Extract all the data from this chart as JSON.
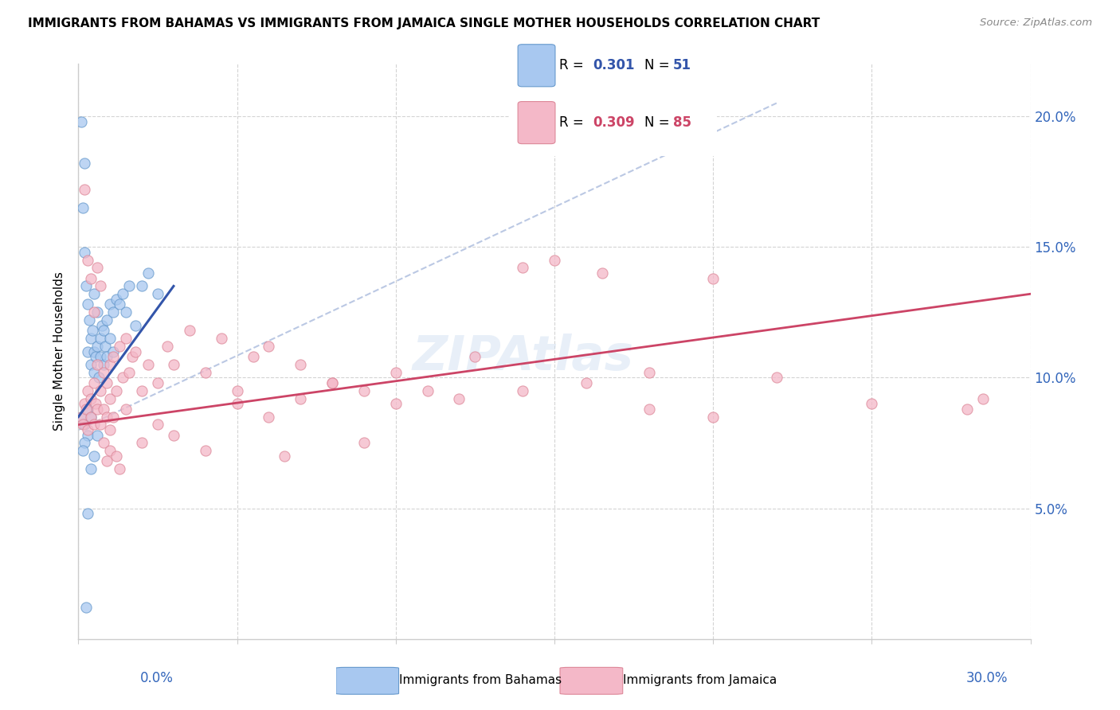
{
  "title": "IMMIGRANTS FROM BAHAMAS VS IMMIGRANTS FROM JAMAICA SINGLE MOTHER HOUSEHOLDS CORRELATION CHART",
  "source": "Source: ZipAtlas.com",
  "ylabel": "Single Mother Households",
  "xlim": [
    0,
    30
  ],
  "ylim": [
    0,
    22
  ],
  "yticks": [
    5,
    10,
    15,
    20
  ],
  "ytick_labels": [
    "5.0%",
    "10.0%",
    "15.0%",
    "20.0%"
  ],
  "color_bahamas_fill": "#a8c8f0",
  "color_bahamas_edge": "#6699cc",
  "color_jamaica_fill": "#f4b8c8",
  "color_jamaica_edge": "#dd8899",
  "color_bahamas_line": "#3355aa",
  "color_jamaica_line": "#cc4466",
  "color_diagonal": "#aabbdd",
  "bahamas_x": [
    0.1,
    0.15,
    0.2,
    0.2,
    0.25,
    0.3,
    0.3,
    0.35,
    0.4,
    0.4,
    0.45,
    0.5,
    0.5,
    0.5,
    0.55,
    0.6,
    0.6,
    0.65,
    0.7,
    0.7,
    0.75,
    0.8,
    0.8,
    0.85,
    0.9,
    0.9,
    1.0,
    1.0,
    1.1,
    1.1,
    1.2,
    1.3,
    1.4,
    1.5,
    1.6,
    1.8,
    2.0,
    2.2,
    2.5,
    0.1,
    0.2,
    0.3,
    0.4,
    0.3,
    0.2,
    0.15,
    0.5,
    0.6,
    0.4,
    0.3,
    0.25
  ],
  "bahamas_y": [
    19.8,
    16.5,
    18.2,
    14.8,
    13.5,
    12.8,
    11.0,
    12.2,
    11.5,
    10.5,
    11.8,
    11.0,
    10.2,
    13.2,
    10.8,
    12.5,
    11.2,
    10.0,
    11.5,
    10.8,
    12.0,
    11.8,
    10.5,
    11.2,
    10.8,
    12.2,
    12.8,
    11.5,
    12.5,
    11.0,
    13.0,
    12.8,
    13.2,
    12.5,
    13.5,
    12.0,
    13.5,
    14.0,
    13.2,
    8.5,
    8.2,
    8.8,
    8.5,
    7.8,
    7.5,
    7.2,
    7.0,
    7.8,
    6.5,
    4.8,
    1.2
  ],
  "jamaica_x": [
    0.1,
    0.15,
    0.2,
    0.25,
    0.3,
    0.3,
    0.4,
    0.4,
    0.5,
    0.5,
    0.55,
    0.6,
    0.6,
    0.7,
    0.7,
    0.8,
    0.8,
    0.9,
    0.9,
    1.0,
    1.0,
    1.0,
    1.1,
    1.2,
    1.3,
    1.4,
    1.5,
    1.6,
    1.7,
    1.8,
    2.0,
    2.2,
    2.5,
    2.8,
    3.0,
    3.5,
    4.0,
    4.5,
    5.0,
    5.5,
    6.0,
    6.5,
    7.0,
    8.0,
    9.0,
    10.0,
    11.0,
    12.5,
    14.0,
    15.0,
    16.5,
    18.0,
    20.0,
    22.0,
    0.2,
    0.3,
    0.4,
    0.5,
    0.6,
    0.7,
    0.8,
    0.9,
    1.0,
    1.1,
    1.2,
    1.3,
    1.5,
    2.0,
    2.5,
    3.0,
    4.0,
    5.0,
    6.0,
    7.0,
    8.0,
    9.0,
    10.0,
    12.0,
    14.0,
    16.0,
    18.0,
    20.0,
    25.0,
    28.0,
    28.5
  ],
  "jamaica_y": [
    8.5,
    8.2,
    9.0,
    8.8,
    9.5,
    8.0,
    9.2,
    8.5,
    9.8,
    8.2,
    9.0,
    10.5,
    8.8,
    9.5,
    8.2,
    10.2,
    8.8,
    9.8,
    8.5,
    10.5,
    9.2,
    8.0,
    10.8,
    9.5,
    11.2,
    10.0,
    11.5,
    10.2,
    10.8,
    11.0,
    9.5,
    10.5,
    9.8,
    11.2,
    10.5,
    11.8,
    10.2,
    11.5,
    9.5,
    10.8,
    11.2,
    7.0,
    10.5,
    9.8,
    7.5,
    10.2,
    9.5,
    10.8,
    14.2,
    14.5,
    14.0,
    10.2,
    13.8,
    10.0,
    17.2,
    14.5,
    13.8,
    12.5,
    14.2,
    13.5,
    7.5,
    6.8,
    7.2,
    8.5,
    7.0,
    6.5,
    8.8,
    7.5,
    8.2,
    7.8,
    7.2,
    9.0,
    8.5,
    9.2,
    9.8,
    9.5,
    9.0,
    9.2,
    9.5,
    9.8,
    8.8,
    8.5,
    9.0,
    8.8,
    9.2
  ],
  "watermark": "ZIPAtlas",
  "legend_items": [
    {
      "label": "R = ",
      "value": "0.301",
      "n_label": "N = ",
      "n_value": "51",
      "color_fill": "#a8c8f0",
      "color_edge": "#6699cc",
      "value_color": "#3355aa",
      "n_value_color": "#3355aa"
    },
    {
      "label": "R = ",
      "value": "0.309",
      "n_label": "N = ",
      "n_value": "85",
      "color_fill": "#f4b8c8",
      "color_edge": "#dd8899",
      "value_color": "#cc4466",
      "n_value_color": "#cc4466"
    }
  ],
  "bottom_legend": [
    {
      "text": "Immigrants from Bahamas",
      "color_fill": "#a8c8f0",
      "color_edge": "#6699cc"
    },
    {
      "text": "Immigrants from Jamaica",
      "color_fill": "#f4b8c8",
      "color_edge": "#dd8899"
    }
  ]
}
